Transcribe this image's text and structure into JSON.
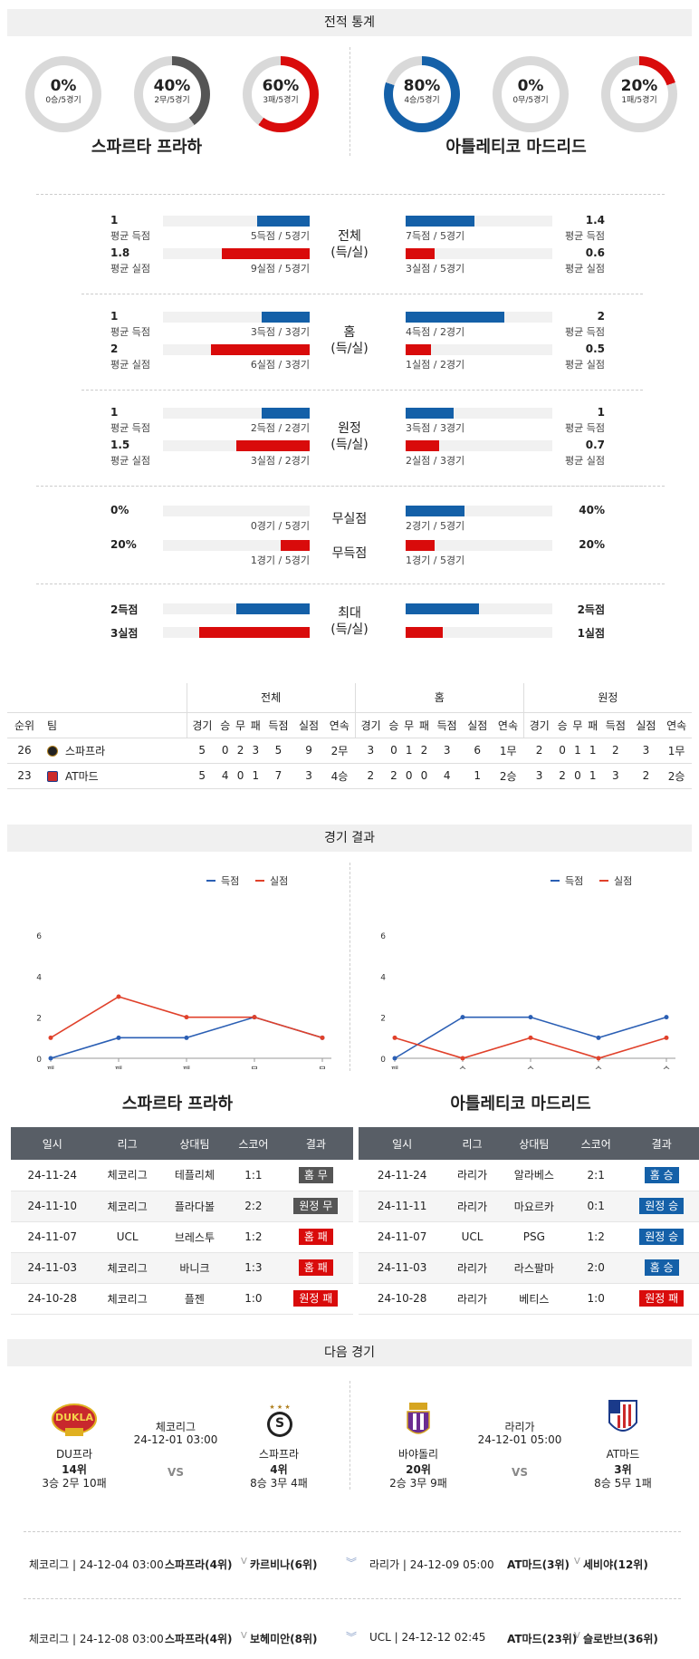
{
  "stats_title": "전적 통계",
  "donuts": [
    {
      "pct": "0%",
      "sub": "0승/5경기",
      "value": 0,
      "color": "#1460a8"
    },
    {
      "pct": "40%",
      "sub": "2무/5경기",
      "value": 40,
      "color": "#555555"
    },
    {
      "pct": "60%",
      "sub": "3패/5경기",
      "value": 60,
      "color": "#d90b0b"
    },
    {
      "pct": "80%",
      "sub": "4승/5경기",
      "value": 80,
      "color": "#1460a8"
    },
    {
      "pct": "0%",
      "sub": "0무/5경기",
      "value": 0,
      "color": "#555555"
    },
    {
      "pct": "20%",
      "sub": "1패/5경기",
      "value": 20,
      "color": "#d90b0b"
    }
  ],
  "home_team": "스파르타 프라하",
  "away_team": "아틀레티코 마드리드",
  "avg_groups": [
    {
      "cat": "전체",
      "cat2": "(득/실)",
      "home_score": "1",
      "home_score_label": "평균 득점",
      "home_score_cap": "5득점 / 5경기",
      "home_score_frac": 0.36,
      "home_concede": "1.8",
      "home_concede_label": "평균 실점",
      "home_concede_cap": "9실점 / 5경기",
      "home_concede_frac": 0.6,
      "away_score": "1.4",
      "away_score_label": "평균 득점",
      "away_score_cap": "7득점 / 5경기",
      "away_score_frac": 0.47,
      "away_concede": "0.6",
      "away_concede_label": "평균 실점",
      "away_concede_cap": "3실점 / 5경기",
      "away_concede_frac": 0.2
    },
    {
      "cat": "홈",
      "cat2": "(득/실)",
      "home_score": "1",
      "home_score_label": "평균 득점",
      "home_score_cap": "3득점 / 3경기",
      "home_score_frac": 0.33,
      "home_concede": "2",
      "home_concede_label": "평균 실점",
      "home_concede_cap": "6실점 / 3경기",
      "home_concede_frac": 0.67,
      "away_score": "2",
      "away_score_label": "평균 득점",
      "away_score_cap": "4득점 / 2경기",
      "away_score_frac": 0.67,
      "away_concede": "0.5",
      "away_concede_label": "평균 실점",
      "away_concede_cap": "1실점 / 2경기",
      "away_concede_frac": 0.17
    },
    {
      "cat": "원정",
      "cat2": "(득/실)",
      "home_score": "1",
      "home_score_label": "평균 득점",
      "home_score_cap": "2득점 / 2경기",
      "home_score_frac": 0.33,
      "home_concede": "1.5",
      "home_concede_label": "평균 실점",
      "home_concede_cap": "3실점 / 2경기",
      "home_concede_frac": 0.5,
      "away_score": "1",
      "away_score_label": "평균 득점",
      "away_score_cap": "3득점 / 3경기",
      "away_score_frac": 0.33,
      "away_concede": "0.7",
      "away_concede_label": "평균 실점",
      "away_concede_cap": "2실점 / 3경기",
      "away_concede_frac": 0.23
    }
  ],
  "clean": {
    "cat": "무실점",
    "home": "0%",
    "home_cap": "0경기 / 5경기",
    "home_frac": 0,
    "away": "40%",
    "away_cap": "2경기 / 5경기",
    "away_frac": 0.4
  },
  "noscore": {
    "cat": "무득점",
    "home": "20%",
    "home_cap": "1경기 / 5경기",
    "home_frac": 0.2,
    "away": "20%",
    "away_cap": "1경기 / 5경기",
    "away_frac": 0.2
  },
  "max": {
    "cat": "최대",
    "cat2": "(득/실)",
    "home_score": "2득점",
    "home_concede": "3실점",
    "away_score": "2득점",
    "away_concede": "1실점",
    "home_score_frac": 0.5,
    "home_concede_frac": 0.75,
    "away_score_frac": 0.5,
    "away_concede_frac": 0.25
  },
  "standings": {
    "group_headers": [
      "전체",
      "홈",
      "원정"
    ],
    "rank_header": "순위",
    "team_header": "팀",
    "cols": [
      "경기",
      "승",
      "무",
      "패",
      "득점",
      "실점",
      "연속"
    ],
    "rows": [
      {
        "rank": "26",
        "team": "스파프라",
        "vals": [
          "5",
          "0",
          "2",
          "3",
          "5",
          "9",
          "2무",
          "3",
          "0",
          "1",
          "2",
          "3",
          "6",
          "1무",
          "2",
          "0",
          "1",
          "1",
          "2",
          "3",
          "1무"
        ]
      },
      {
        "rank": "23",
        "team": "AT마드",
        "vals": [
          "5",
          "4",
          "0",
          "1",
          "7",
          "3",
          "4승",
          "2",
          "2",
          "0",
          "0",
          "4",
          "1",
          "2승",
          "3",
          "2",
          "0",
          "1",
          "3",
          "2",
          "2승"
        ]
      }
    ]
  },
  "results_title": "경기 결과",
  "legend": {
    "score": "득점",
    "concede": "실점"
  },
  "chart_data": [
    {
      "type": "line",
      "x": [
        "패",
        "패",
        "패",
        "무",
        "무"
      ],
      "ylim": [
        0,
        6
      ],
      "yticks": [
        "0",
        "2",
        "4",
        "6"
      ],
      "series": [
        {
          "name": "득점",
          "values": [
            0,
            1,
            1,
            2,
            1
          ],
          "color": "#2b5fb4"
        },
        {
          "name": "실점",
          "values": [
            1,
            3,
            2,
            2,
            1
          ],
          "color": "#e0412b"
        }
      ]
    },
    {
      "type": "line",
      "x": [
        "패",
        "승",
        "승",
        "승",
        "승"
      ],
      "ylim": [
        0,
        6
      ],
      "yticks": [
        "0",
        "2",
        "4",
        "6"
      ],
      "series": [
        {
          "name": "득점",
          "values": [
            0,
            2,
            2,
            1,
            2
          ],
          "color": "#2b5fb4"
        },
        {
          "name": "실점",
          "values": [
            1,
            0,
            1,
            0,
            1
          ],
          "color": "#e0412b"
        }
      ]
    }
  ],
  "match_headers": [
    "일시",
    "리그",
    "상대팀",
    "스코어",
    "결과"
  ],
  "home_matches": [
    {
      "date": "24-11-24",
      "league": "체코리그",
      "opp": "테플리체",
      "score": "1:1",
      "result": "홈 무",
      "kind": "draw"
    },
    {
      "date": "24-11-10",
      "league": "체코리그",
      "opp": "플라다볼",
      "score": "2:2",
      "result": "원정 무",
      "kind": "draw"
    },
    {
      "date": "24-11-07",
      "league": "UCL",
      "opp": "브레스투",
      "score": "1:2",
      "result": "홈 패",
      "kind": "loss"
    },
    {
      "date": "24-11-03",
      "league": "체코리그",
      "opp": "바니크",
      "score": "1:3",
      "result": "홈 패",
      "kind": "loss"
    },
    {
      "date": "24-10-28",
      "league": "체코리그",
      "opp": "플젠",
      "score": "1:0",
      "result": "원정 패",
      "kind": "loss"
    }
  ],
  "away_matches": [
    {
      "date": "24-11-24",
      "league": "라리가",
      "opp": "알라베스",
      "score": "2:1",
      "result": "홈 승",
      "kind": "win"
    },
    {
      "date": "24-11-11",
      "league": "라리가",
      "opp": "마요르카",
      "score": "0:1",
      "result": "원정 승",
      "kind": "win"
    },
    {
      "date": "24-11-07",
      "league": "UCL",
      "opp": "PSG",
      "score": "1:2",
      "result": "원정 승",
      "kind": "win"
    },
    {
      "date": "24-11-03",
      "league": "라리가",
      "opp": "라스팔마",
      "score": "2:0",
      "result": "홈 승",
      "kind": "win"
    },
    {
      "date": "24-10-28",
      "league": "라리가",
      "opp": "베티스",
      "score": "1:0",
      "result": "원정 패",
      "kind": "loss"
    }
  ],
  "next_title": "다음 경기",
  "next_left": {
    "league": "체코리그",
    "time": "24-12-01 03:00",
    "vs": "VS",
    "team_a": "DU프라",
    "team_a_rank": "14위",
    "team_a_rec": "3승 2무 10패",
    "team_a_logo": "DUKLA",
    "team_b": "스파프라",
    "team_b_rank": "4위",
    "team_b_rec": "8승 3무 4패",
    "team_b_logo": "S"
  },
  "next_right": {
    "league": "라리가",
    "time": "24-12-01 05:00",
    "vs": "VS",
    "team_a": "바야돌리",
    "team_a_rank": "20위",
    "team_a_rec": "2승 3무 9패",
    "team_b": "AT마드",
    "team_b_rank": "3위",
    "team_b_rec": "8승 5무 1패"
  },
  "bottom_lines": [
    {
      "left_info": "체코리그 | 24-12-04 03:00",
      "left_home": "스파프라(4위)",
      "left_v": "V",
      "left_away": "카르비나(6위)",
      "right_info": "라리가 | 24-12-09 05:00",
      "right_home": "AT마드(3위)",
      "right_v": "V",
      "right_away": "세비야(12위)"
    },
    {
      "left_info": "체코리그 | 24-12-08 03:00",
      "left_home": "스파프라(4위)",
      "left_v": "V",
      "left_away": "보헤미안(8위)",
      "right_info": "UCL | 24-12-12 02:45",
      "right_home": "AT마드(23위)",
      "right_v": "V",
      "right_away": "슬로반브(36위)"
    }
  ]
}
